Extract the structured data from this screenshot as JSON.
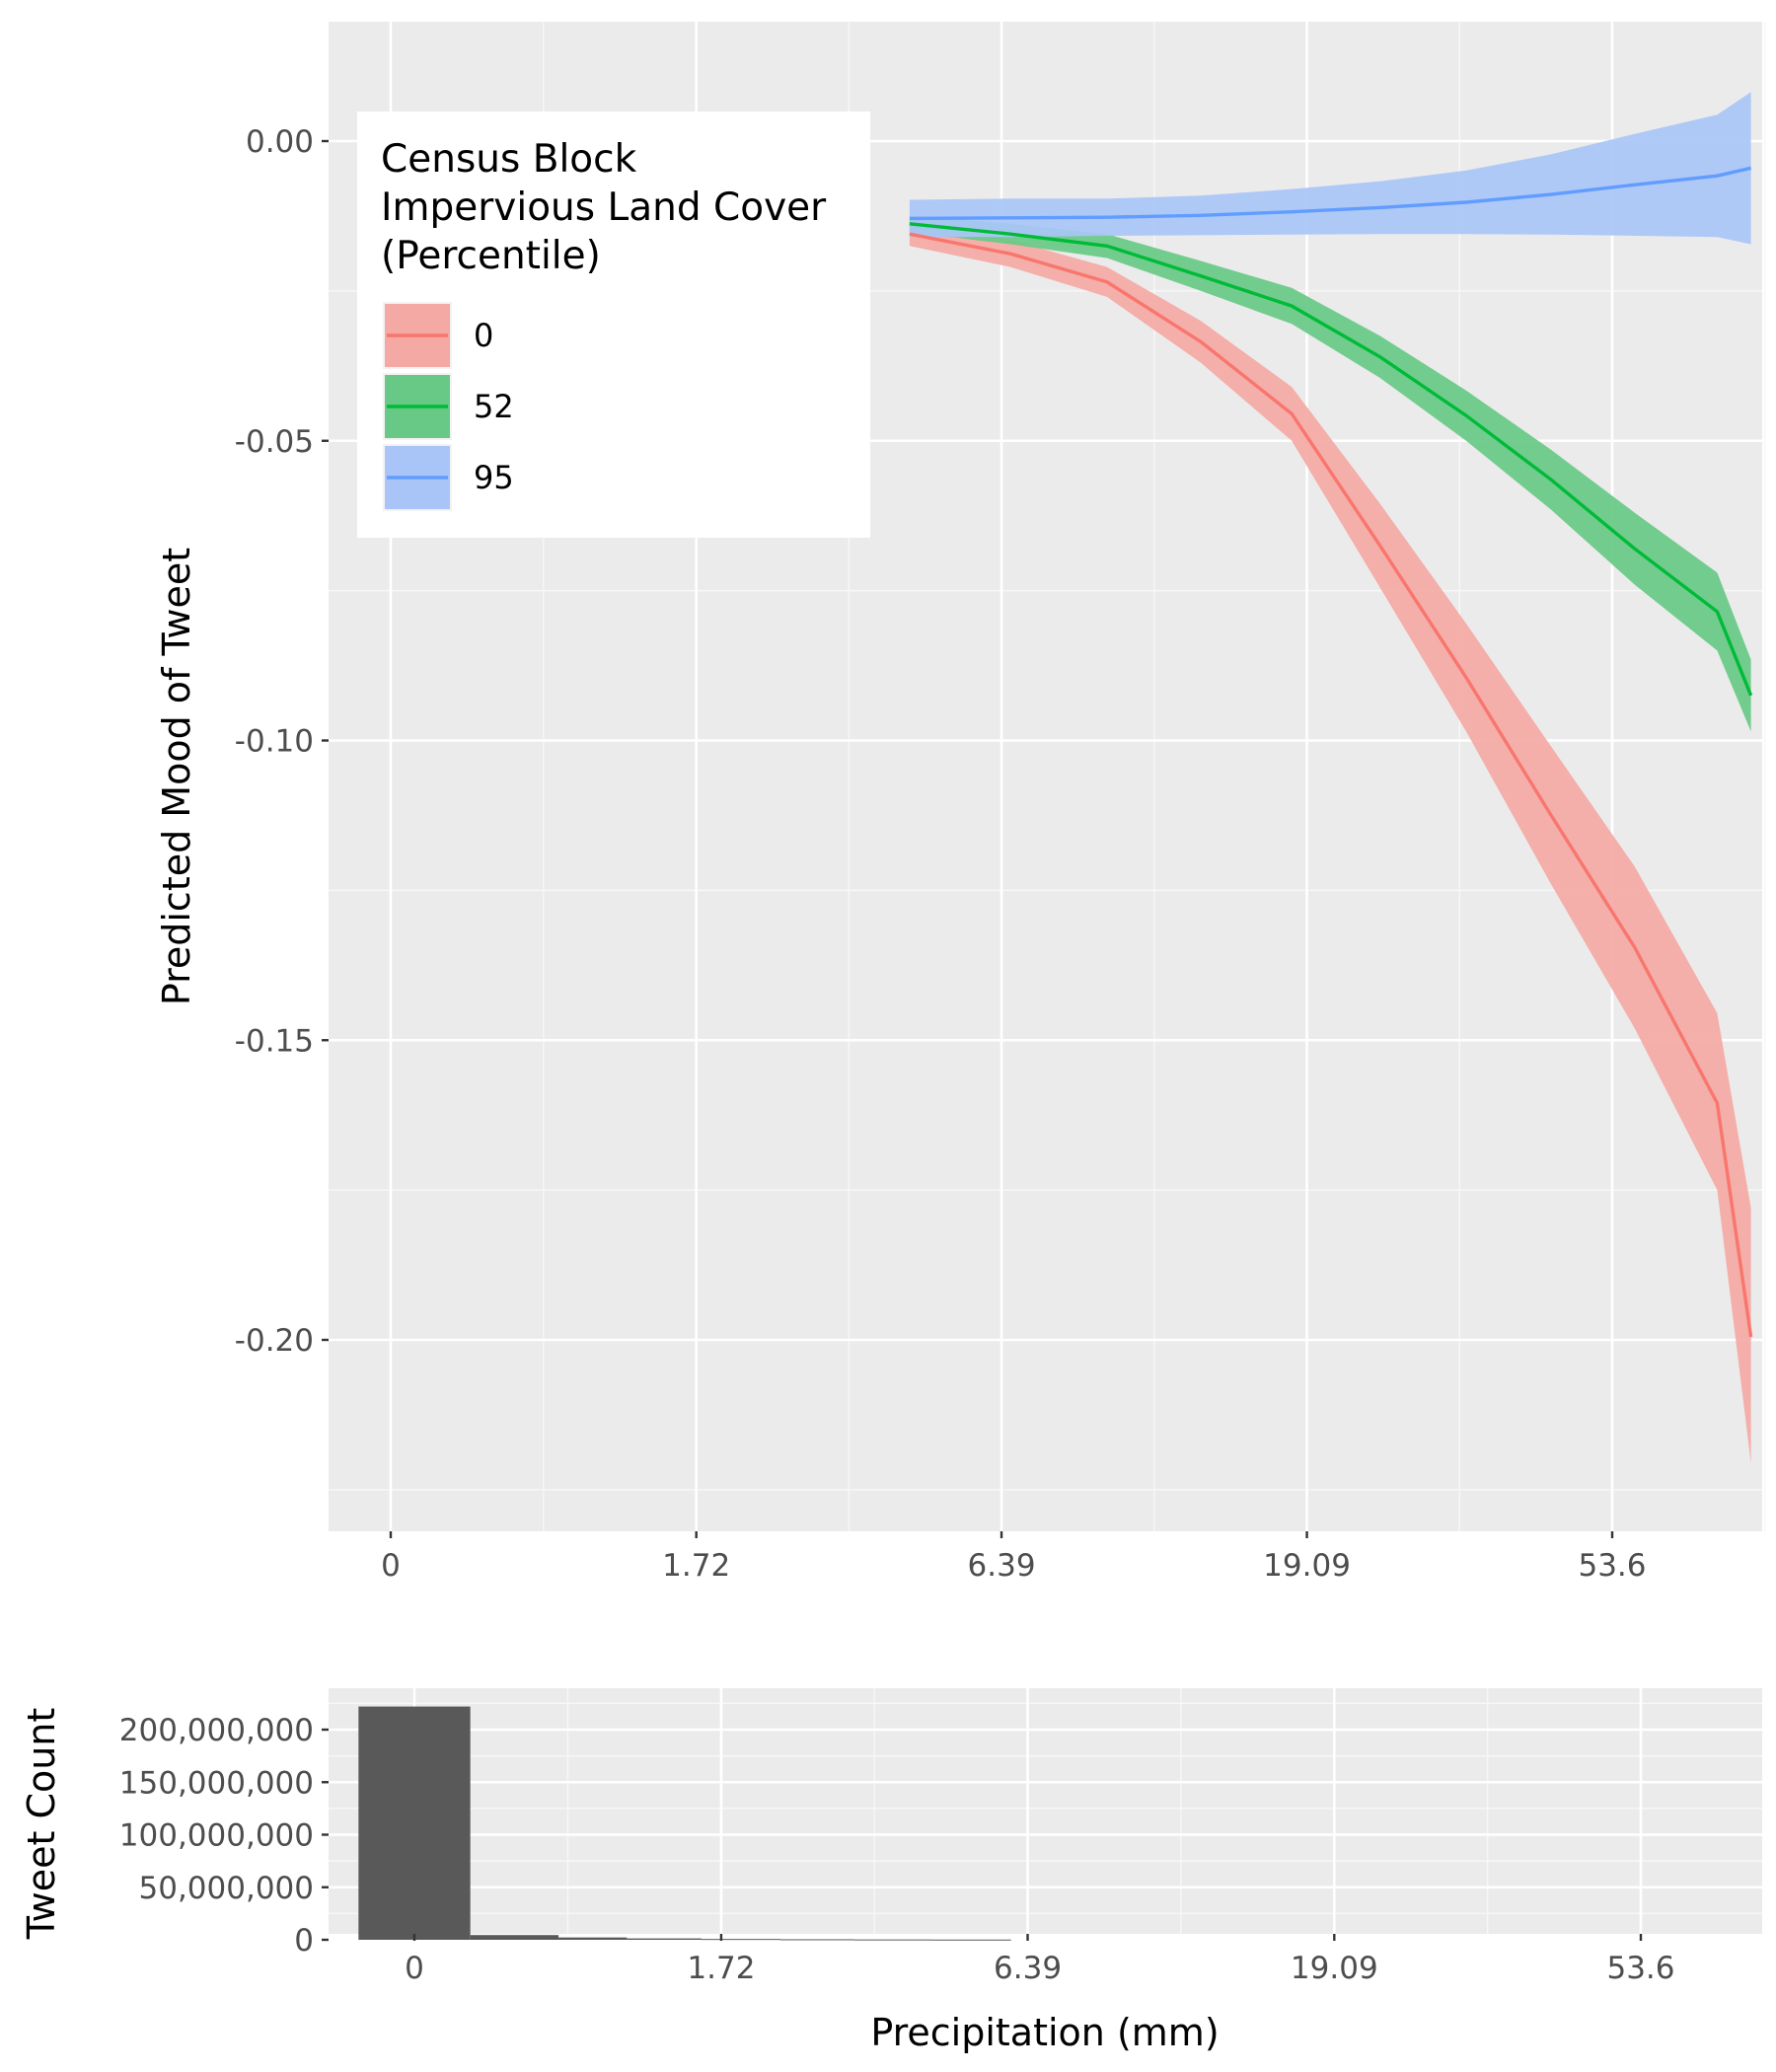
{
  "chart_data": [
    {
      "type": "line",
      "ylabel": "Predicted Mood of Tweet",
      "xlabel": "",
      "x_scale": "log1p",
      "x_tick_labels": [
        "0",
        "1.72",
        "6.39",
        "19.09",
        "53.6"
      ],
      "y_tick_labels": [
        "0.00",
        "-0.05",
        "-0.10",
        "-0.15",
        "-0.20"
      ],
      "y_ticks": [
        0.0,
        -0.05,
        -0.1,
        -0.15,
        -0.2
      ],
      "ylim": [
        -0.2255,
        0.0205
      ],
      "grid": true,
      "legend": {
        "title_lines": [
          "Census Block",
          "Impervious Land Cover",
          "(Percentile)"
        ],
        "position": "top-left-inside",
        "entries": [
          "0",
          "52",
          "95"
        ]
      },
      "x": [
        4.47,
        6.61,
        9.44,
        13.2,
        18.12,
        24.53,
        32.85,
        43.7,
        57.76,
        75.99,
        85.0
      ],
      "series": [
        {
          "name": "0",
          "color": "#F8766D",
          "fill": "#F4A9A4",
          "values": [
            -0.0155,
            -0.0188,
            -0.0235,
            -0.0335,
            -0.0455,
            -0.0675,
            -0.0895,
            -0.1125,
            -0.1345,
            -0.1605,
            -0.1995
          ],
          "lower": [
            -0.0175,
            -0.021,
            -0.026,
            -0.037,
            -0.05,
            -0.0745,
            -0.0985,
            -0.124,
            -0.148,
            -0.175,
            -0.2205
          ],
          "upper": [
            -0.0135,
            -0.0165,
            -0.021,
            -0.03,
            -0.041,
            -0.0605,
            -0.0805,
            -0.101,
            -0.121,
            -0.1455,
            -0.178
          ]
        },
        {
          "name": "52",
          "color": "#00BA38",
          "fill": "#67C985",
          "values": [
            -0.0138,
            -0.0155,
            -0.0175,
            -0.0225,
            -0.0275,
            -0.036,
            -0.0458,
            -0.0565,
            -0.068,
            -0.0785,
            -0.0925
          ],
          "lower": [
            -0.0152,
            -0.0172,
            -0.0195,
            -0.025,
            -0.0305,
            -0.0395,
            -0.05,
            -0.0615,
            -0.074,
            -0.085,
            -0.0985
          ],
          "upper": [
            -0.0124,
            -0.0138,
            -0.0155,
            -0.02,
            -0.0245,
            -0.0325,
            -0.0416,
            -0.0515,
            -0.062,
            -0.072,
            -0.0865
          ]
        },
        {
          "name": "95",
          "color": "#619CFF",
          "fill": "#A9C5F7",
          "values": [
            -0.0129,
            -0.0128,
            -0.0127,
            -0.0124,
            -0.0118,
            -0.0111,
            -0.0102,
            -0.0089,
            -0.0073,
            -0.0058,
            -0.0045
          ],
          "lower": [
            -0.016,
            -0.016,
            -0.0158,
            -0.0157,
            -0.0156,
            -0.0155,
            -0.0155,
            -0.0156,
            -0.0158,
            -0.016,
            -0.0172
          ],
          "upper": [
            -0.0098,
            -0.0096,
            -0.0096,
            -0.0091,
            -0.008,
            -0.0067,
            -0.0049,
            -0.0022,
            0.0012,
            0.0044,
            0.0082
          ]
        }
      ]
    },
    {
      "type": "bar",
      "ylabel": "Tweet Count",
      "xlabel": "Precipitation (mm)",
      "x_scale": "log1p",
      "x_tick_labels": [
        "0",
        "1.72",
        "6.39",
        "19.09",
        "53.6"
      ],
      "y_tick_labels": [
        "200,000,000",
        "150,000,000",
        "100,000,000",
        "50,000,000",
        "0"
      ],
      "y_ticks": [
        200000000,
        150000000,
        100000000,
        50000000,
        0
      ],
      "ylim": [
        -5000000,
        232000000
      ],
      "grid": true,
      "bar_color": "#595959",
      "bin_edges": [
        -0.2,
        0.2,
        0.6,
        1.0,
        1.55,
        2.3,
        3.2,
        4.4,
        6.0,
        8.0,
        10.5
      ],
      "values": [
        222000000,
        4500000,
        2200000,
        1300000,
        800000,
        500000,
        320000,
        220000,
        0,
        0
      ]
    }
  ]
}
